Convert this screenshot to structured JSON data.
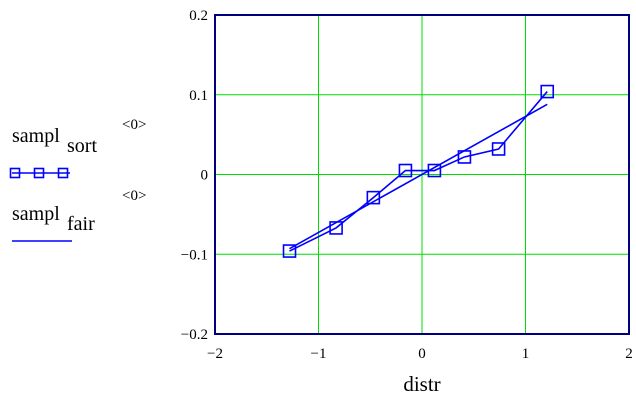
{
  "chart_data": {
    "type": "line",
    "xlabel": "distr",
    "xlim": [
      -2,
      2
    ],
    "ylim": [
      -0.2,
      0.2
    ],
    "grid": true,
    "legend_position": "left",
    "x_ticks": [
      -2,
      -1,
      0,
      1,
      2
    ],
    "x_tick_labels": [
      "−2",
      "−1",
      "0",
      "1",
      "2"
    ],
    "y_ticks": [
      -0.2,
      -0.1,
      0,
      0.1,
      0.2
    ],
    "y_tick_labels": [
      "−0.2",
      "−0.1",
      "0",
      "0.1",
      "0.2"
    ],
    "series": [
      {
        "base": "sampl",
        "subscript": "sort",
        "superscript": "<0>",
        "marker": "square",
        "x": [
          -1.28,
          -0.83,
          -0.47,
          -0.16,
          0.12,
          0.41,
          0.74,
          1.21
        ],
        "y": [
          -0.096,
          -0.067,
          -0.029,
          0.005,
          0.005,
          0.022,
          0.032,
          0.104
        ]
      },
      {
        "base": "sampl",
        "subscript": "fair",
        "superscript": "<0>",
        "marker": "none",
        "x": [
          -1.28,
          1.21
        ],
        "y": [
          -0.093,
          0.088
        ]
      }
    ]
  },
  "colors": {
    "frame": "#00007f",
    "series": "#0000ff",
    "grid": "#00dd00",
    "background": "#ffffff"
  }
}
